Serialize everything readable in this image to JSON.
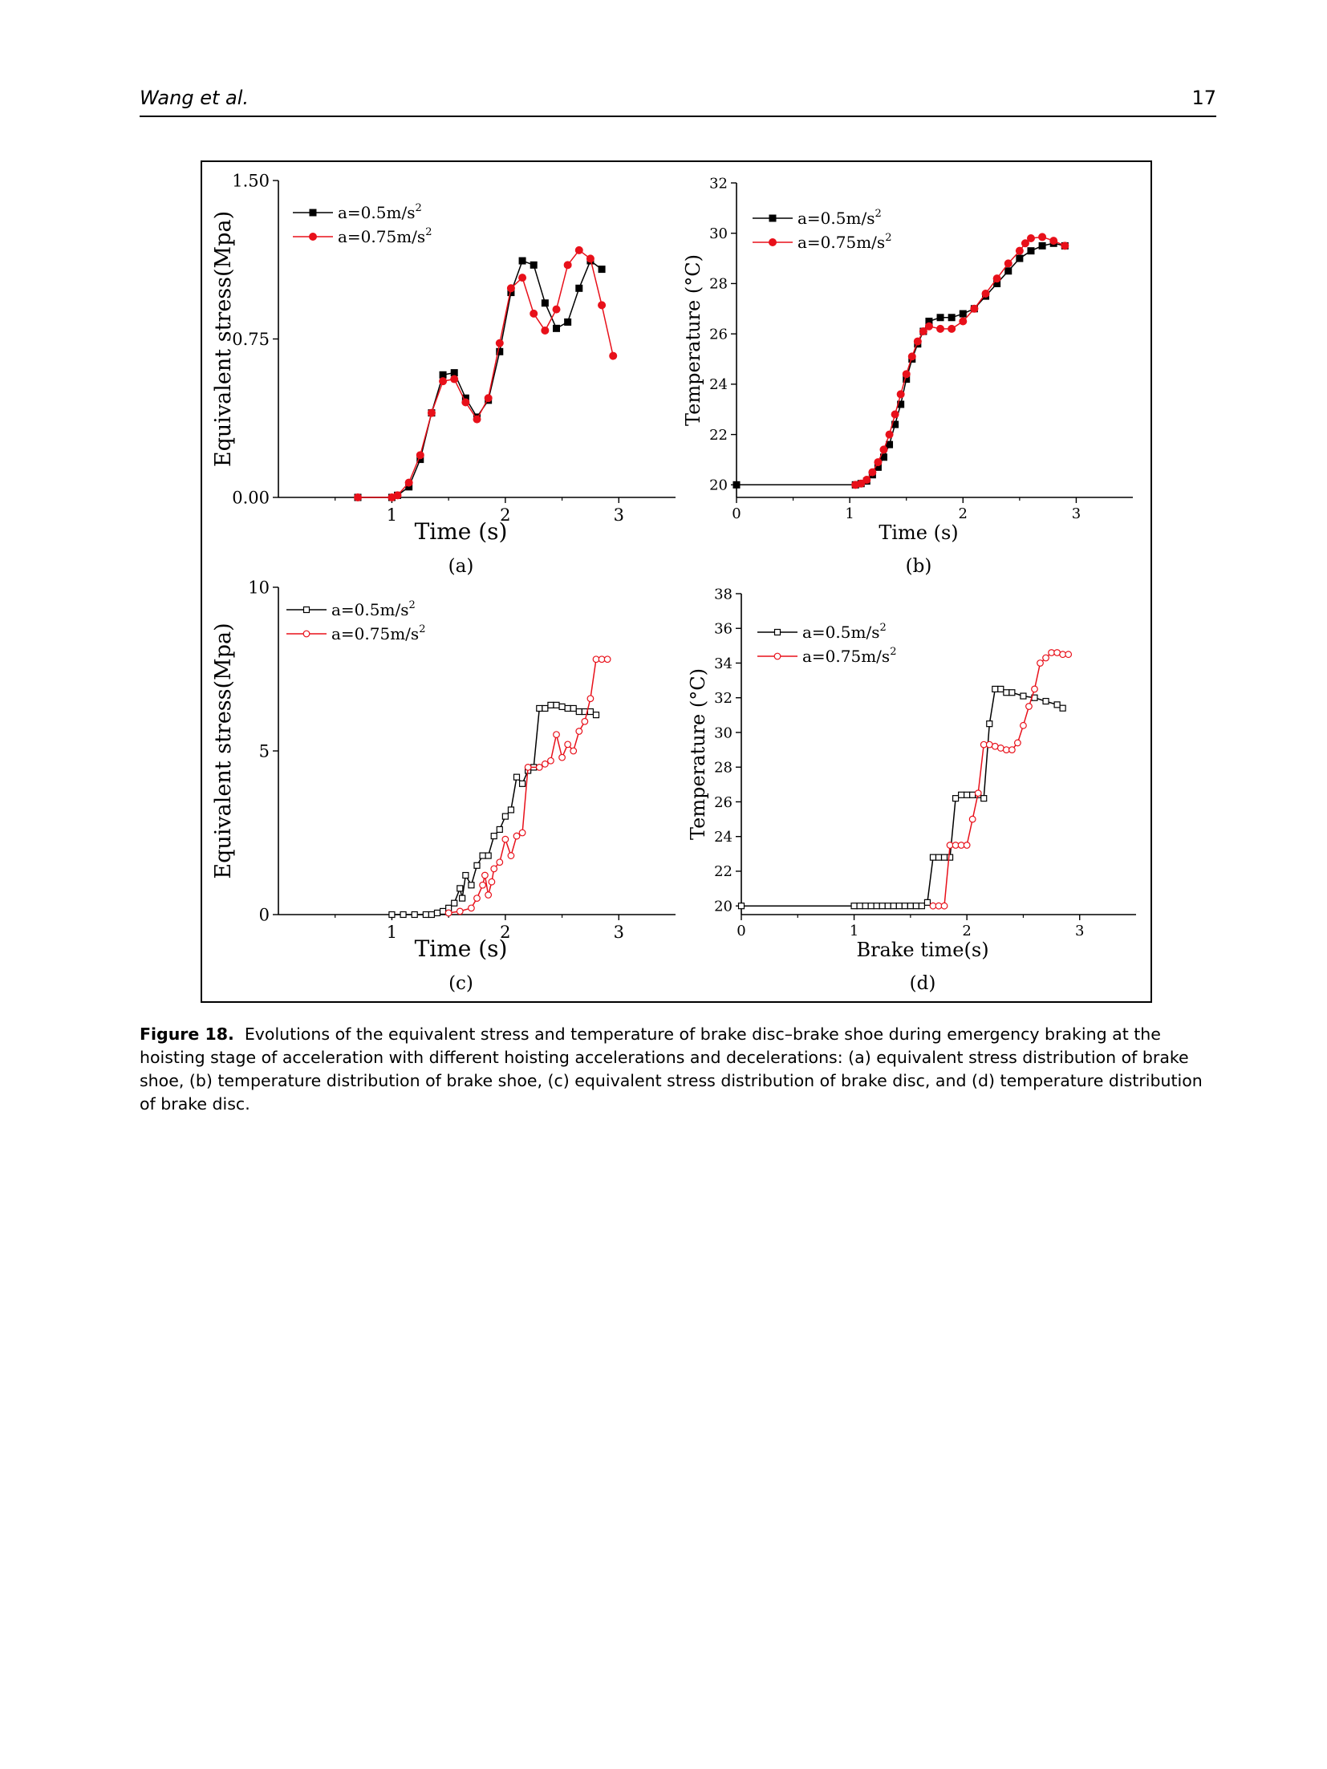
{
  "header": {
    "author": "Wang et al.",
    "page_number": "17"
  },
  "caption": {
    "label": "Figure 18.",
    "text": "Evolutions of the equivalent stress and temperature of brake disc–brake shoe during emergency braking at the hoisting stage of acceleration with different hoisting accelerations and decelerations: (a) equivalent stress distribution of brake shoe, (b) temperature distribution of brake shoe, (c) equivalent stress distribution of brake disc, and (d) temperature distribution of brake disc."
  },
  "colors": {
    "series_1": "#000000",
    "series_2": "#e8101a"
  },
  "chart_data": [
    {
      "panel": "(a)",
      "type": "line",
      "xlabel": "Time (s)",
      "ylabel": "Equivalent stress(Mpa)",
      "xlim": [
        0,
        3.5
      ],
      "ylim": [
        0,
        1.5
      ],
      "xticks": [
        "1",
        "2",
        "3"
      ],
      "yticks": [
        "0.00",
        "0.75",
        "1.50"
      ],
      "marker": "filled",
      "series": [
        {
          "name": "a=0.5m/s",
          "name_sup": "2",
          "x": [
            0.7,
            1.0,
            1.05,
            1.15,
            1.25,
            1.35,
            1.45,
            1.55,
            1.65,
            1.75,
            1.85,
            1.95,
            2.05,
            2.15,
            2.25,
            2.35,
            2.45,
            2.55,
            2.65,
            2.75,
            2.85
          ],
          "y": [
            0,
            0,
            0.01,
            0.05,
            0.18,
            0.4,
            0.58,
            0.59,
            0.47,
            0.38,
            0.46,
            0.69,
            0.97,
            1.12,
            1.1,
            0.92,
            0.8,
            0.83,
            0.99,
            1.12,
            1.08
          ]
        },
        {
          "name": "a=0.75m/s",
          "name_sup": "2",
          "x": [
            0.7,
            1.0,
            1.05,
            1.15,
            1.25,
            1.35,
            1.45,
            1.55,
            1.65,
            1.75,
            1.85,
            1.95,
            2.05,
            2.15,
            2.25,
            2.35,
            2.45,
            2.55,
            2.65,
            2.75,
            2.85,
            2.95
          ],
          "y": [
            0,
            0,
            0.01,
            0.07,
            0.2,
            0.4,
            0.55,
            0.56,
            0.45,
            0.37,
            0.47,
            0.73,
            0.99,
            1.04,
            0.87,
            0.79,
            0.89,
            1.1,
            1.17,
            1.13,
            0.91,
            0.67
          ]
        }
      ]
    },
    {
      "panel": "(b)",
      "type": "line",
      "xlabel": "Time (s)",
      "ylabel": "Temperature (°C)",
      "xlim": [
        0,
        3.5
      ],
      "ylim": [
        19.5,
        32
      ],
      "xticks": [
        "0",
        "1",
        "2",
        "3"
      ],
      "yticks": [
        "20",
        "22",
        "24",
        "26",
        "28",
        "30",
        "32"
      ],
      "marker": "filled",
      "series": [
        {
          "name": "a=0.5m/s",
          "name_sup": "2",
          "x": [
            0,
            1.05,
            1.1,
            1.15,
            1.2,
            1.25,
            1.3,
            1.35,
            1.4,
            1.45,
            1.5,
            1.55,
            1.6,
            1.65,
            1.7,
            1.8,
            1.9,
            2.0,
            2.1,
            2.2,
            2.3,
            2.4,
            2.5,
            2.6,
            2.7,
            2.8,
            2.9
          ],
          "y": [
            20,
            20,
            20.05,
            20.15,
            20.4,
            20.7,
            21.1,
            21.6,
            22.4,
            23.2,
            24.2,
            25.0,
            25.6,
            26.1,
            26.5,
            26.65,
            26.65,
            26.8,
            27.0,
            27.5,
            28.0,
            28.5,
            29.0,
            29.3,
            29.5,
            29.6,
            29.5
          ]
        },
        {
          "name": "a=0.75m/s",
          "name_sup": "2",
          "x": [
            1.05,
            1.1,
            1.15,
            1.2,
            1.25,
            1.3,
            1.35,
            1.4,
            1.45,
            1.5,
            1.55,
            1.6,
            1.65,
            1.7,
            1.8,
            1.9,
            2.0,
            2.1,
            2.2,
            2.3,
            2.4,
            2.5,
            2.55,
            2.6,
            2.7,
            2.8,
            2.9
          ],
          "y": [
            20,
            20.05,
            20.2,
            20.5,
            20.9,
            21.4,
            22.0,
            22.8,
            23.6,
            24.4,
            25.1,
            25.7,
            26.1,
            26.3,
            26.2,
            26.2,
            26.5,
            27.0,
            27.6,
            28.2,
            28.8,
            29.3,
            29.6,
            29.8,
            29.85,
            29.7,
            29.5
          ]
        }
      ]
    },
    {
      "panel": "(c)",
      "type": "line",
      "xlabel": "Time (s)",
      "ylabel": "Equivalent stress(Mpa)",
      "xlim": [
        0,
        3.5
      ],
      "ylim": [
        0,
        10
      ],
      "xticks": [
        "1",
        "2",
        "3"
      ],
      "yticks": [
        "0",
        "5",
        "10"
      ],
      "marker": "hollow",
      "series": [
        {
          "name": "a=0.5m/s",
          "name_sup": "2",
          "x": [
            1.0,
            1.1,
            1.2,
            1.3,
            1.35,
            1.4,
            1.45,
            1.5,
            1.55,
            1.6,
            1.62,
            1.65,
            1.7,
            1.75,
            1.8,
            1.85,
            1.9,
            1.95,
            2.0,
            2.05,
            2.1,
            2.15,
            2.2,
            2.25,
            2.3,
            2.35,
            2.4,
            2.45,
            2.5,
            2.55,
            2.6,
            2.65,
            2.7,
            2.75,
            2.8
          ],
          "y": [
            0,
            0,
            0,
            0,
            0,
            0.05,
            0.1,
            0.2,
            0.35,
            0.8,
            0.5,
            1.2,
            0.9,
            1.5,
            1.8,
            1.8,
            2.4,
            2.6,
            3.0,
            3.2,
            4.2,
            4.0,
            4.4,
            4.5,
            6.3,
            6.3,
            6.4,
            6.4,
            6.35,
            6.3,
            6.3,
            6.2,
            6.2,
            6.2,
            6.1
          ]
        },
        {
          "name": "a=0.75m/s",
          "name_sup": "2",
          "x": [
            1.5,
            1.6,
            1.7,
            1.75,
            1.8,
            1.82,
            1.85,
            1.88,
            1.9,
            1.95,
            2.0,
            2.05,
            2.1,
            2.15,
            2.2,
            2.3,
            2.35,
            2.4,
            2.45,
            2.5,
            2.55,
            2.6,
            2.65,
            2.7,
            2.75,
            2.8,
            2.85,
            2.9
          ],
          "y": [
            0.05,
            0.1,
            0.2,
            0.5,
            0.9,
            1.2,
            0.6,
            1.0,
            1.4,
            1.6,
            2.3,
            1.8,
            2.4,
            2.5,
            4.5,
            4.5,
            4.6,
            4.7,
            5.5,
            4.8,
            5.2,
            5.0,
            5.6,
            5.9,
            6.6,
            7.8,
            7.8,
            7.8
          ]
        }
      ]
    },
    {
      "panel": "(d)",
      "type": "line",
      "xlabel": "Brake time(s)",
      "ylabel": "Temperature (°C)",
      "xlim": [
        0,
        3.5
      ],
      "ylim": [
        19.5,
        38
      ],
      "xticks": [
        "0",
        "1",
        "2",
        "3"
      ],
      "yticks": [
        "20",
        "22",
        "24",
        "26",
        "28",
        "30",
        "32",
        "34",
        "36",
        "38"
      ],
      "marker": "hollow",
      "series": [
        {
          "name": "a=0.5m/s",
          "name_sup": "2",
          "x": [
            0,
            1.0,
            1.05,
            1.1,
            1.15,
            1.2,
            1.25,
            1.3,
            1.35,
            1.4,
            1.45,
            1.5,
            1.55,
            1.6,
            1.65,
            1.7,
            1.75,
            1.8,
            1.85,
            1.9,
            1.95,
            2.0,
            2.05,
            2.1,
            2.15,
            2.2,
            2.25,
            2.3,
            2.35,
            2.4,
            2.5,
            2.6,
            2.7,
            2.8,
            2.85
          ],
          "y": [
            20,
            20,
            20,
            20,
            20,
            20,
            20,
            20,
            20,
            20,
            20,
            20,
            20,
            20,
            20.2,
            22.8,
            22.8,
            22.8,
            22.8,
            26.2,
            26.4,
            26.4,
            26.4,
            26.4,
            26.2,
            30.5,
            32.5,
            32.5,
            32.3,
            32.3,
            32.1,
            32.0,
            31.8,
            31.6,
            31.4
          ]
        },
        {
          "name": "a=0.75m/s",
          "name_sup": "2",
          "x": [
            1.7,
            1.75,
            1.8,
            1.85,
            1.9,
            1.95,
            2.0,
            2.05,
            2.1,
            2.15,
            2.2,
            2.25,
            2.3,
            2.35,
            2.4,
            2.45,
            2.5,
            2.55,
            2.6,
            2.65,
            2.7,
            2.75,
            2.8,
            2.85,
            2.9
          ],
          "y": [
            20,
            20,
            20,
            23.5,
            23.5,
            23.5,
            23.5,
            25.0,
            26.5,
            29.3,
            29.3,
            29.2,
            29.1,
            29.0,
            29.0,
            29.4,
            30.4,
            31.5,
            32.5,
            34.0,
            34.3,
            34.6,
            34.6,
            34.5,
            34.5
          ]
        }
      ]
    }
  ]
}
